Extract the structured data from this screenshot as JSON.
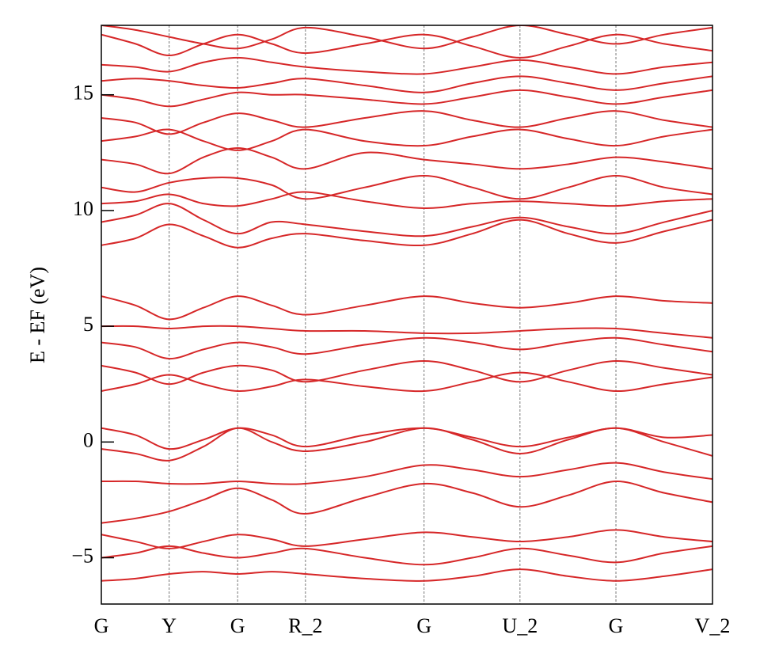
{
  "chart_data": {
    "type": "line",
    "ylabel": "E - EF (eV)",
    "color": "#d62728",
    "x": [
      0,
      0.056,
      0.111,
      0.167,
      0.223,
      0.279,
      0.334,
      0.431,
      0.528,
      0.607,
      0.685,
      0.764,
      0.842,
      0.921,
      1
    ],
    "xlim": [
      0,
      1
    ],
    "xticks": [
      {
        "value": 0,
        "label": "G"
      },
      {
        "value": 0.111,
        "label": "Y"
      },
      {
        "value": 0.223,
        "label": "G"
      },
      {
        "value": 0.334,
        "label": "R_2"
      },
      {
        "value": 0.528,
        "label": "G"
      },
      {
        "value": 0.685,
        "label": "U_2"
      },
      {
        "value": 0.842,
        "label": "G"
      },
      {
        "value": 1,
        "label": "V_2"
      }
    ],
    "ylim": [
      -7,
      18
    ],
    "yticks": [
      {
        "value": -5,
        "label": "−5"
      },
      0,
      5,
      10,
      15
    ],
    "vertical_grid": true,
    "series": [
      {
        "values": [
          -6,
          -5.9,
          -5.7,
          -5.6,
          -5.7,
          -5.6,
          -5.7,
          -5.9,
          -6,
          -5.8,
          -5.5,
          -5.8,
          -6,
          -5.8,
          -5.5
        ]
      },
      {
        "values": [
          -5,
          -4.8,
          -4.5,
          -4.8,
          -5,
          -4.8,
          -4.6,
          -5,
          -5.3,
          -5,
          -4.6,
          -4.9,
          -5.2,
          -4.8,
          -4.5
        ]
      },
      {
        "values": [
          -4,
          -4.3,
          -4.6,
          -4.3,
          -4,
          -4.2,
          -4.5,
          -4.2,
          -3.9,
          -4.1,
          -4.3,
          -4.1,
          -3.8,
          -4.1,
          -4.3
        ]
      },
      {
        "values": [
          -3.5,
          -3.3,
          -3,
          -2.5,
          -2,
          -2.5,
          -3.1,
          -2.4,
          -1.8,
          -2.2,
          -2.8,
          -2.3,
          -1.7,
          -2.2,
          -2.6
        ]
      },
      {
        "values": [
          -1.7,
          -1.7,
          -1.8,
          -1.8,
          -1.7,
          -1.8,
          -1.8,
          -1.5,
          -1,
          -1.2,
          -1.5,
          -1.2,
          -0.9,
          -1.3,
          -1.6
        ]
      },
      {
        "values": [
          -0.3,
          -0.5,
          -0.8,
          -0.2,
          0.6,
          0,
          -0.4,
          0,
          0.6,
          0.1,
          -0.5,
          0.1,
          0.6,
          0,
          -0.6
        ]
      },
      {
        "values": [
          0.6,
          0.3,
          -0.3,
          0.1,
          0.6,
          0.3,
          -0.2,
          0.3,
          0.6,
          0.2,
          -0.2,
          0.2,
          0.6,
          0.2,
          0.3
        ]
      },
      {
        "values": [
          2.2,
          2.5,
          2.9,
          2.5,
          2.2,
          2.4,
          2.7,
          2.4,
          2.2,
          2.6,
          3,
          2.6,
          2.2,
          2.5,
          2.8
        ]
      },
      {
        "values": [
          3.3,
          3,
          2.5,
          3,
          3.3,
          3.1,
          2.6,
          3.1,
          3.5,
          3.1,
          2.6,
          3.1,
          3.5,
          3.2,
          2.9
        ]
      },
      {
        "values": [
          4.3,
          4.1,
          3.6,
          4,
          4.3,
          4.1,
          3.8,
          4.2,
          4.5,
          4.3,
          4,
          4.3,
          4.5,
          4.2,
          3.9
        ]
      },
      {
        "values": [
          5,
          5,
          4.9,
          5,
          5,
          4.9,
          4.8,
          4.8,
          4.7,
          4.7,
          4.8,
          4.9,
          4.9,
          4.7,
          4.5
        ]
      },
      {
        "values": [
          6.3,
          5.9,
          5.3,
          5.8,
          6.3,
          5.9,
          5.5,
          5.9,
          6.3,
          6,
          5.8,
          6,
          6.3,
          6.1,
          6
        ]
      },
      {
        "values": [
          8.5,
          8.8,
          9.4,
          8.9,
          8.4,
          8.8,
          9,
          8.7,
          8.5,
          9,
          9.6,
          9,
          8.6,
          9.1,
          9.6
        ]
      },
      {
        "values": [
          9.5,
          9.8,
          10.3,
          9.6,
          9,
          9.5,
          9.4,
          9.1,
          8.9,
          9.3,
          9.7,
          9.3,
          9,
          9.5,
          10
        ]
      },
      {
        "values": [
          10.3,
          10.4,
          10.7,
          10.3,
          10.2,
          10.5,
          10.8,
          10.4,
          10.1,
          10.3,
          10.4,
          10.3,
          10.2,
          10.4,
          10.5
        ]
      },
      {
        "values": [
          11,
          10.8,
          11.2,
          11.4,
          11.4,
          11.1,
          10.5,
          11,
          11.5,
          11,
          10.5,
          11,
          11.5,
          11,
          10.7
        ]
      },
      {
        "values": [
          12.2,
          12,
          11.6,
          12.3,
          12.7,
          12.3,
          11.8,
          12.5,
          12.2,
          12,
          11.8,
          12,
          12.3,
          12.1,
          11.8
        ]
      },
      {
        "values": [
          13,
          13.2,
          13.5,
          13,
          12.6,
          13,
          13.5,
          13,
          12.8,
          13.2,
          13.5,
          13.1,
          12.8,
          13.2,
          13.5
        ]
      },
      {
        "values": [
          14,
          13.8,
          13.3,
          13.8,
          14.2,
          13.9,
          13.6,
          14,
          14.3,
          13.9,
          13.6,
          14,
          14.3,
          13.9,
          13.6
        ]
      },
      {
        "values": [
          15,
          14.8,
          14.5,
          14.8,
          15.1,
          15,
          15,
          14.8,
          14.6,
          14.9,
          15.2,
          14.9,
          14.6,
          14.9,
          15.2
        ]
      },
      {
        "values": [
          15.6,
          15.7,
          15.6,
          15.4,
          15.3,
          15.5,
          15.7,
          15.4,
          15.1,
          15.5,
          15.8,
          15.5,
          15.2,
          15.5,
          15.8
        ]
      },
      {
        "values": [
          16.3,
          16.2,
          16,
          16.4,
          16.6,
          16.4,
          16.2,
          16,
          15.9,
          16.2,
          16.5,
          16.2,
          15.9,
          16.2,
          16.4
        ]
      },
      {
        "values": [
          17.6,
          17.2,
          16.7,
          17.2,
          17.6,
          17.2,
          16.8,
          17.2,
          17.6,
          17.1,
          16.6,
          17.1,
          17.6,
          17.2,
          16.9
        ]
      },
      {
        "values": [
          18,
          17.8,
          17.5,
          17.2,
          17,
          17.4,
          17.9,
          17.5,
          17,
          17.5,
          18,
          17.6,
          17.2,
          17.6,
          17.9
        ]
      }
    ]
  }
}
